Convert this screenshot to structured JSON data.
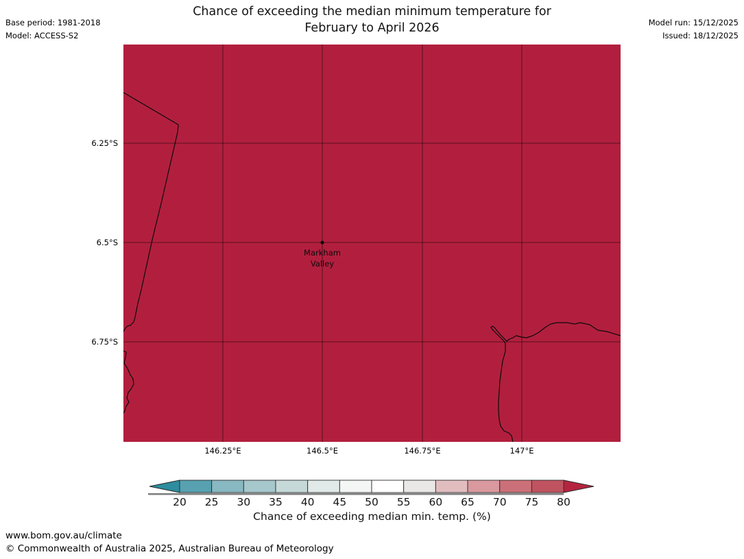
{
  "header": {
    "base_period": "Base period: 1981-2018",
    "model": "Model: ACCESS-S2",
    "model_run": "Model run: 15/12/2025",
    "issued": "Issued: 18/12/2025"
  },
  "title": {
    "line1": "Chance of exceeding the median minimum temperature for",
    "line2": "February to April 2026"
  },
  "map": {
    "fill_color": "#b21f3e",
    "fill_meaning": "chance greater than 80%",
    "region_label": {
      "line1": "Markham",
      "line2": "Valley"
    },
    "x_tick_labels": [
      "146.25°E",
      "146.5°E",
      "146.75°E",
      "147°E"
    ],
    "y_tick_labels": [
      "6.25°S",
      "6.5°S",
      "6.75°S"
    ],
    "lon_range": [
      "146°E",
      "147.25°E"
    ],
    "lat_range": [
      "6°S",
      "7°S"
    ]
  },
  "colorbar": {
    "label": "Chance of exceeding median min. temp. (%)",
    "tick_labels": [
      "20",
      "25",
      "30",
      "35",
      "40",
      "45",
      "50",
      "55",
      "60",
      "65",
      "70",
      "75",
      "80"
    ],
    "segment_colors": [
      "#57a1b0",
      "#88b8c1",
      "#a6c7cb",
      "#c6d9d9",
      "#e1eae9",
      "#f4f6f5",
      "#ffffff",
      "#eae8e6",
      "#e2bdbf",
      "#d9999e",
      "#cb7078",
      "#c05360"
    ],
    "arrow_left_color": "#2e8d9e",
    "arrow_right_color": "#b5243f"
  },
  "footer": {
    "url": "www.bom.gov.au/climate",
    "copyright": "© Commonwealth of Australia 2025, Australian Bureau of Meteorology"
  }
}
